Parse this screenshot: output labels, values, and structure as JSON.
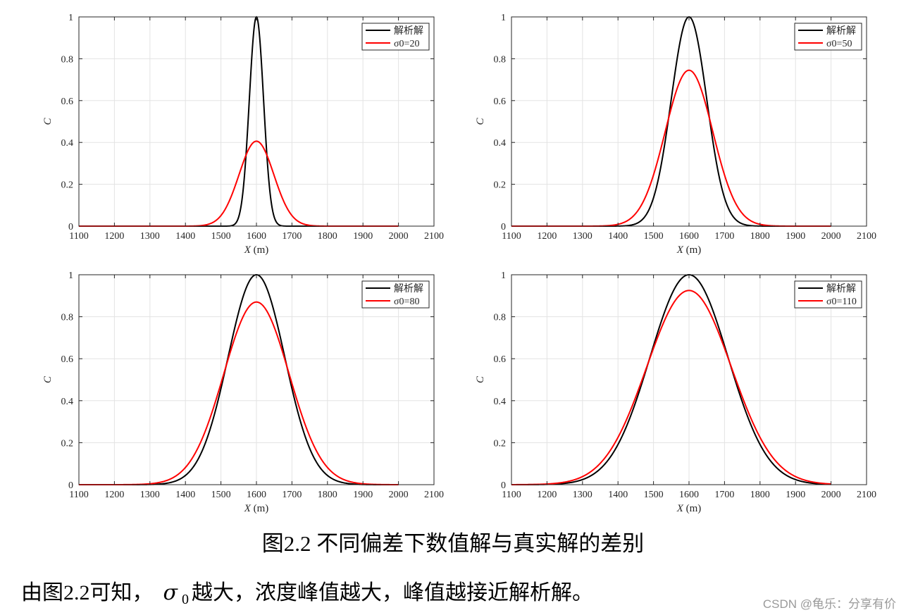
{
  "chart_data": [
    {
      "type": "line",
      "xlabel_var": "X",
      "xlabel_unit": "(m)",
      "ylabel": "C",
      "xlim": [
        1100,
        2100
      ],
      "ylim": [
        0,
        1
      ],
      "xticks": [
        "1100",
        "1200",
        "1300",
        "1400",
        "1500",
        "1600",
        "1700",
        "1800",
        "1900",
        "2000",
        "2100"
      ],
      "yticks": [
        "0",
        "0.2",
        "0.4",
        "0.6",
        "0.8",
        "1"
      ],
      "grid": true,
      "legend_position": "top-right",
      "series": [
        {
          "name": "解析解",
          "color": "#000000",
          "mean": 1600,
          "peak": 1.0,
          "sigma": 20,
          "x_range": [
            1100,
            2000
          ]
        },
        {
          "name": "σ0=20",
          "color": "#ff0000",
          "mean": 1600,
          "peak": 0.406,
          "sigma": 49,
          "x_range": [
            1100,
            2000
          ]
        }
      ]
    },
    {
      "type": "line",
      "xlabel_var": "X",
      "xlabel_unit": "(m)",
      "ylabel": "C",
      "xlim": [
        1100,
        2100
      ],
      "ylim": [
        0,
        1
      ],
      "xticks": [
        "1100",
        "1200",
        "1300",
        "1400",
        "1500",
        "1600",
        "1700",
        "1800",
        "1900",
        "2000",
        "2100"
      ],
      "yticks": [
        "0",
        "0.2",
        "0.4",
        "0.6",
        "0.8",
        "1"
      ],
      "grid": true,
      "legend_position": "top-right",
      "series": [
        {
          "name": "解析解",
          "color": "#000000",
          "mean": 1600,
          "peak": 1.0,
          "sigma": 50,
          "x_range": [
            1100,
            2000
          ]
        },
        {
          "name": "σ0=50",
          "color": "#ff0000",
          "mean": 1600,
          "peak": 0.745,
          "sigma": 67,
          "x_range": [
            1100,
            2000
          ]
        }
      ]
    },
    {
      "type": "line",
      "xlabel_var": "X",
      "xlabel_unit": "(m)",
      "ylabel": "C",
      "xlim": [
        1100,
        2100
      ],
      "ylim": [
        0,
        1
      ],
      "xticks": [
        "1100",
        "1200",
        "1300",
        "1400",
        "1500",
        "1600",
        "1700",
        "1800",
        "1900",
        "2000",
        "2100"
      ],
      "yticks": [
        "0",
        "0.2",
        "0.4",
        "0.6",
        "0.8",
        "1"
      ],
      "grid": true,
      "legend_position": "top-right",
      "series": [
        {
          "name": "解析解",
          "color": "#000000",
          "mean": 1600,
          "peak": 1.0,
          "sigma": 80,
          "x_range": [
            1100,
            2000
          ]
        },
        {
          "name": "σ0=80",
          "color": "#ff0000",
          "mean": 1600,
          "peak": 0.87,
          "sigma": 92,
          "x_range": [
            1100,
            2000
          ]
        }
      ]
    },
    {
      "type": "line",
      "xlabel_var": "X",
      "xlabel_unit": "(m)",
      "ylabel": "C",
      "xlim": [
        1100,
        2100
      ],
      "ylim": [
        0,
        1
      ],
      "xticks": [
        "1100",
        "1200",
        "1300",
        "1400",
        "1500",
        "1600",
        "1700",
        "1800",
        "1900",
        "2000",
        "2100"
      ],
      "yticks": [
        "0",
        "0.2",
        "0.4",
        "0.6",
        "0.8",
        "1"
      ],
      "grid": true,
      "legend_position": "top-right",
      "series": [
        {
          "name": "解析解",
          "color": "#000000",
          "mean": 1600,
          "peak": 1.0,
          "sigma": 110,
          "x_range": [
            1100,
            2000
          ]
        },
        {
          "name": "σ0=110",
          "color": "#ff0000",
          "mean": 1600,
          "peak": 0.925,
          "sigma": 119,
          "x_range": [
            1100,
            2000
          ]
        }
      ]
    }
  ],
  "caption": "图2.2 不同偏差下数值解与真实解的差别",
  "body_text": {
    "before": "由图2.2可知，",
    "symbol": "σ",
    "subscript": "0",
    "after": "越大，浓度峰值越大，峰值越接近解析解。"
  },
  "watermark": "CSDN @龟乐：分享有价"
}
